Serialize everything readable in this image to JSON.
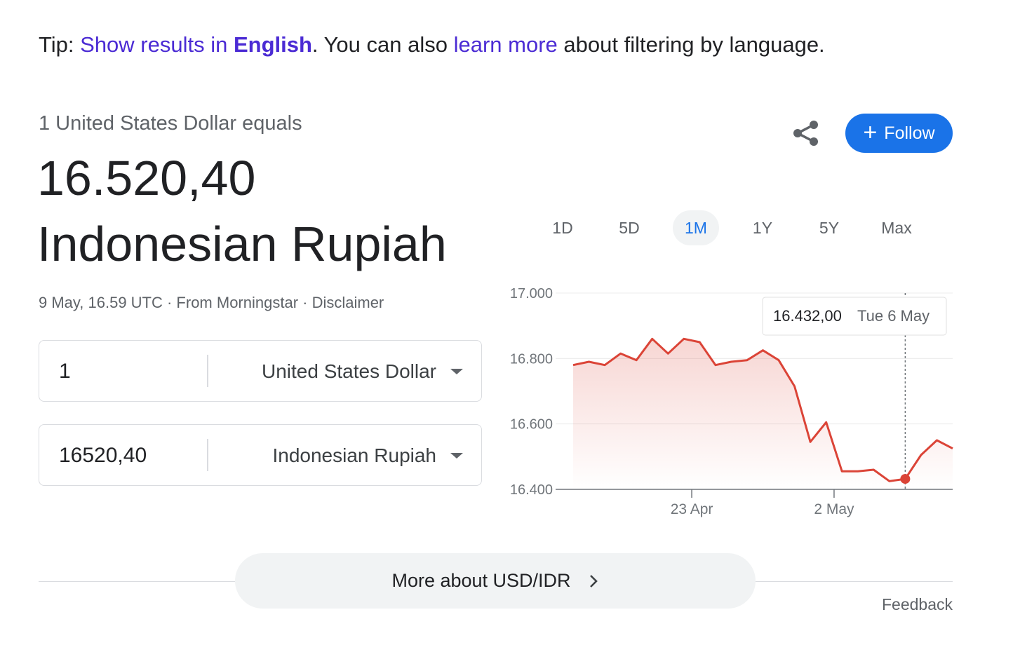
{
  "tip": {
    "prefix": "Tip: ",
    "link1_text": "Show results in ",
    "link1_bold": "English",
    "middle": ". You can also ",
    "link2_text": "learn more",
    "suffix": " about filtering by language."
  },
  "summary": {
    "equals_label": "1 United States Dollar equals",
    "amount": "16.520,40",
    "currency_name": "Indonesian Rupiah",
    "source_line": "9 May, 16.59 UTC · From Morningstar · Disclaimer"
  },
  "converter": {
    "from": {
      "value": "1",
      "currency": "United States Dollar"
    },
    "to": {
      "value": "16520,40",
      "currency": "Indonesian Rupiah"
    }
  },
  "actions": {
    "follow_label": "Follow",
    "share_icon": "share-icon"
  },
  "ranges": {
    "items": [
      "1D",
      "5D",
      "1M",
      "1Y",
      "5Y",
      "Max"
    ],
    "active": "1M"
  },
  "tooltip": {
    "value": "16.432,00",
    "date": "Tue 6 May"
  },
  "chart_data": {
    "type": "area",
    "series": [
      {
        "values": [
          16780,
          16790,
          16780,
          16815,
          16795,
          16860,
          16815,
          16860,
          16850,
          16780,
          16790,
          16795,
          16825,
          16795,
          16715,
          16545,
          16605,
          16455,
          16455,
          16460,
          16425,
          16432,
          16505,
          16550,
          16525
        ]
      }
    ],
    "x_tick_labels": [
      "23 Apr",
      "2 May"
    ],
    "x_tick_index": [
      7.5,
      16.5
    ],
    "y_ticks": [
      "17.000",
      "16.800",
      "16.600",
      "16.400"
    ],
    "ylim": [
      16400,
      17000
    ],
    "grid": true,
    "line_color": "#db4437",
    "highlight_index": 21
  },
  "footer": {
    "more_label": "More about USD/IDR",
    "feedback_label": "Feedback"
  }
}
